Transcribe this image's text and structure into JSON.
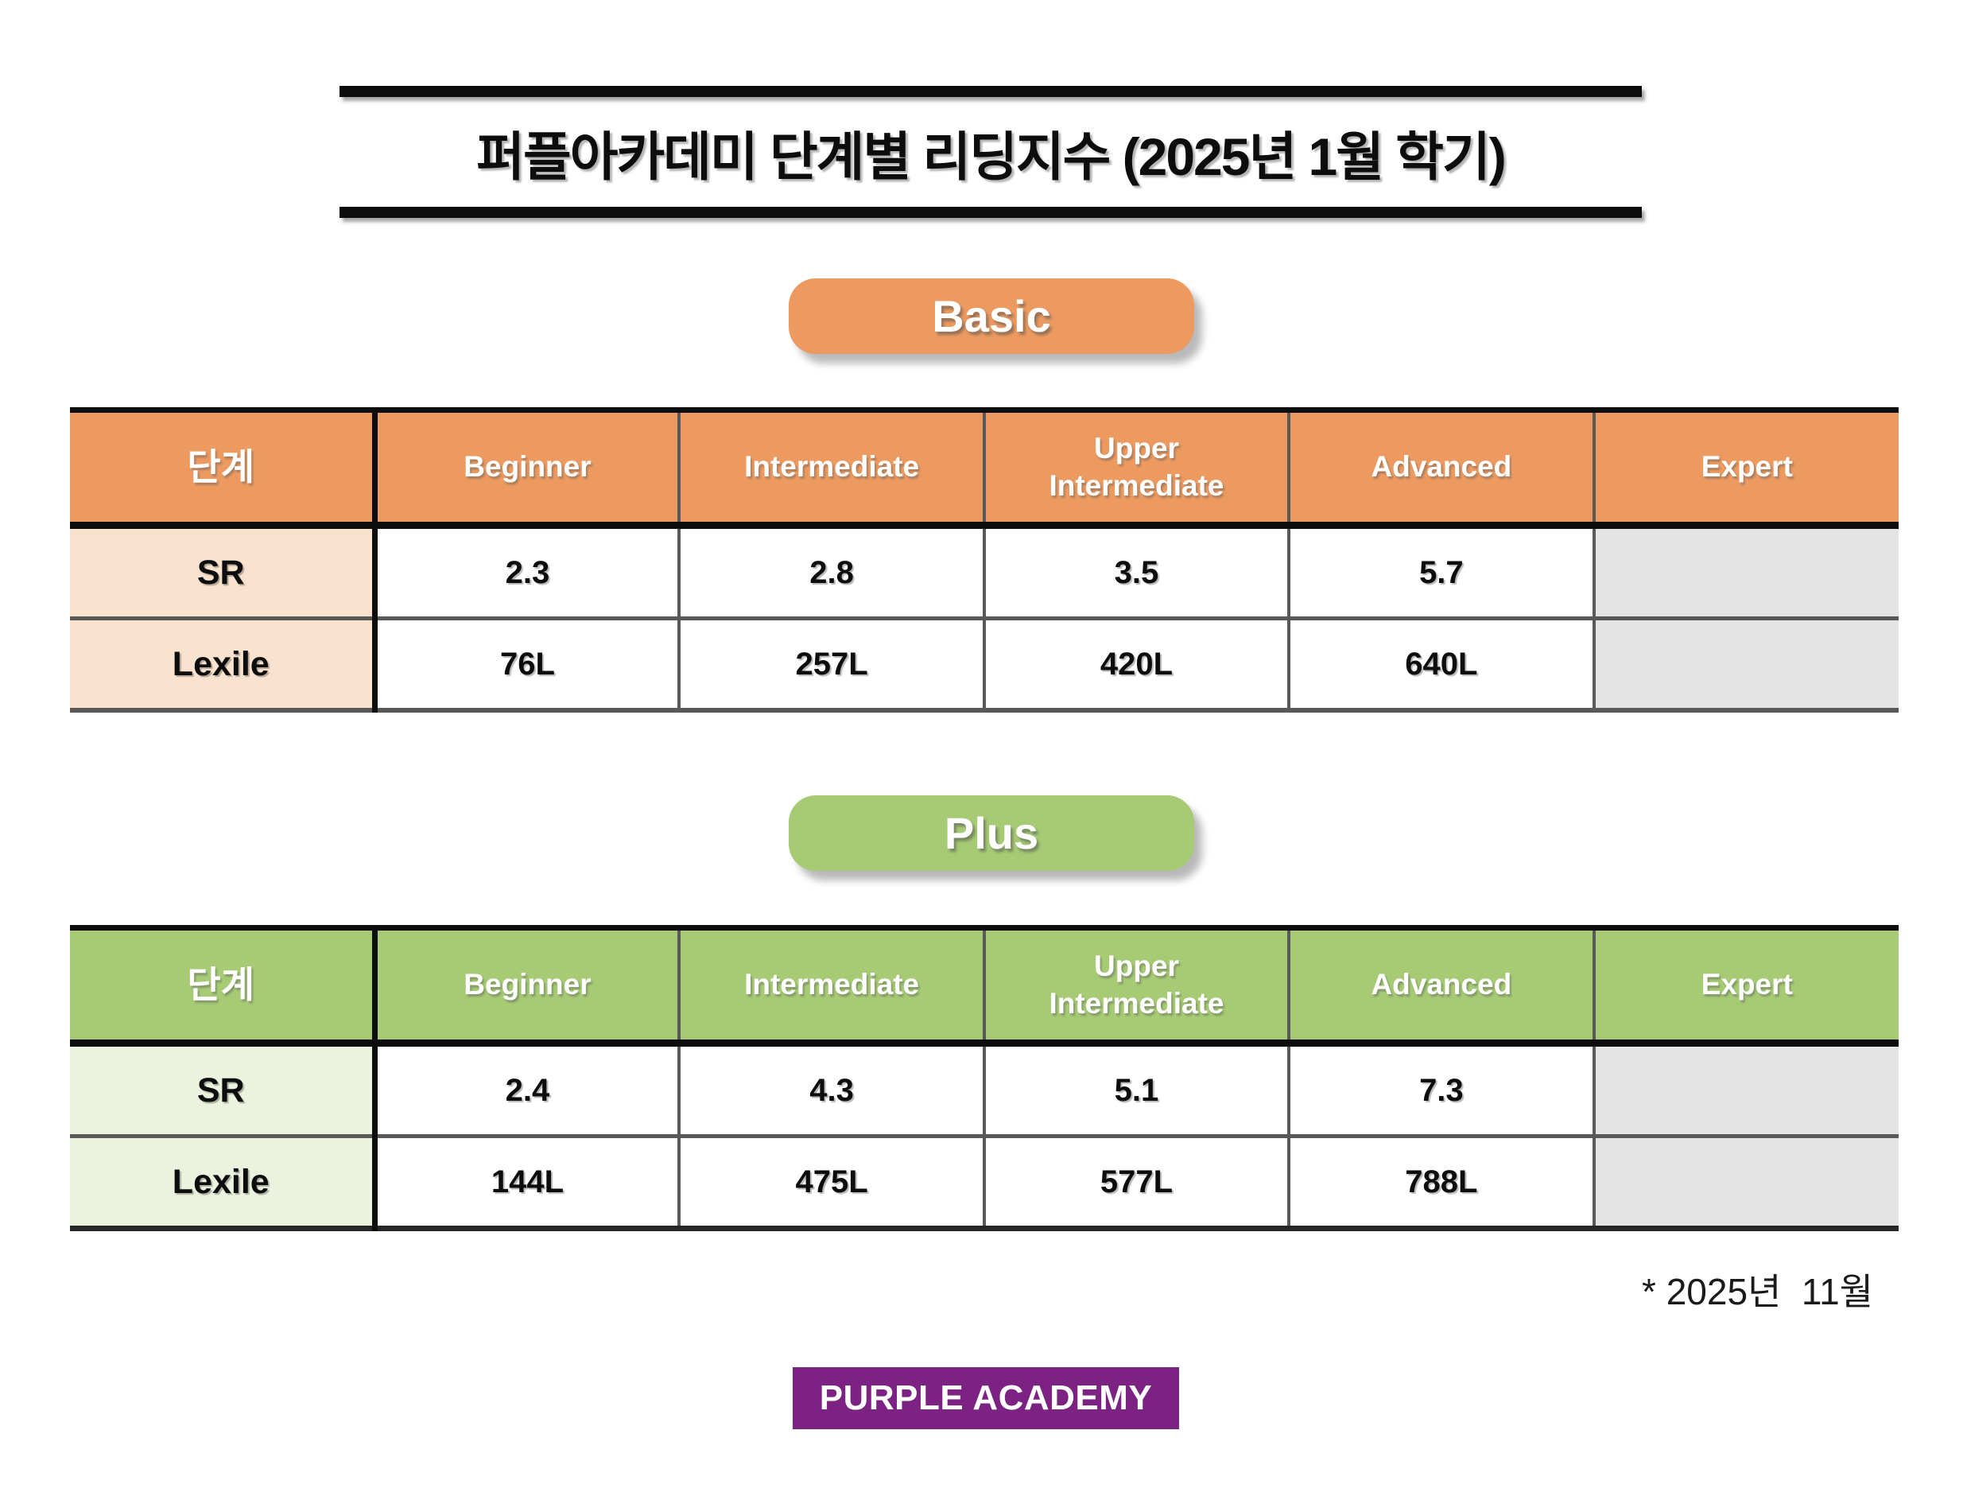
{
  "title": {
    "text": "퍼플아카데미 단계별 리딩지수 (2025년 1월 학기)"
  },
  "sections": [
    {
      "badge_label": "Basic",
      "accent_color": "#EC9A60",
      "label_bg_color": "#FAE3CE",
      "table": {
        "headers": [
          "단계",
          "Beginner",
          "Intermediate",
          "Upper Intermediate",
          "Advanced",
          "Expert"
        ],
        "rows": [
          {
            "label": "SR",
            "values": [
              "2.3",
              "2.8",
              "3.5",
              "5.7",
              ""
            ]
          },
          {
            "label": "Lexile",
            "values": [
              "76L",
              "257L",
              "420L",
              "640L",
              ""
            ]
          }
        ]
      }
    },
    {
      "badge_label": "Plus",
      "accent_color": "#A6CB74",
      "label_bg_color": "#EBF2DE",
      "table": {
        "headers": [
          "단계",
          "Beginner",
          "Intermediate",
          "Upper Intermediate",
          "Advanced",
          "Expert"
        ],
        "rows": [
          {
            "label": "SR",
            "values": [
              "2.4",
              "4.3",
              "5.1",
              "7.3",
              ""
            ]
          },
          {
            "label": "Lexile",
            "values": [
              "144L",
              "475L",
              "577L",
              "788L",
              ""
            ]
          }
        ]
      }
    }
  ],
  "empty_cell_color": "#E4E4E4",
  "footnote": {
    "text": "* 2025년  11월"
  },
  "logo": {
    "text": "PURPLE ACADEMY",
    "background_color": "#7B2282"
  }
}
